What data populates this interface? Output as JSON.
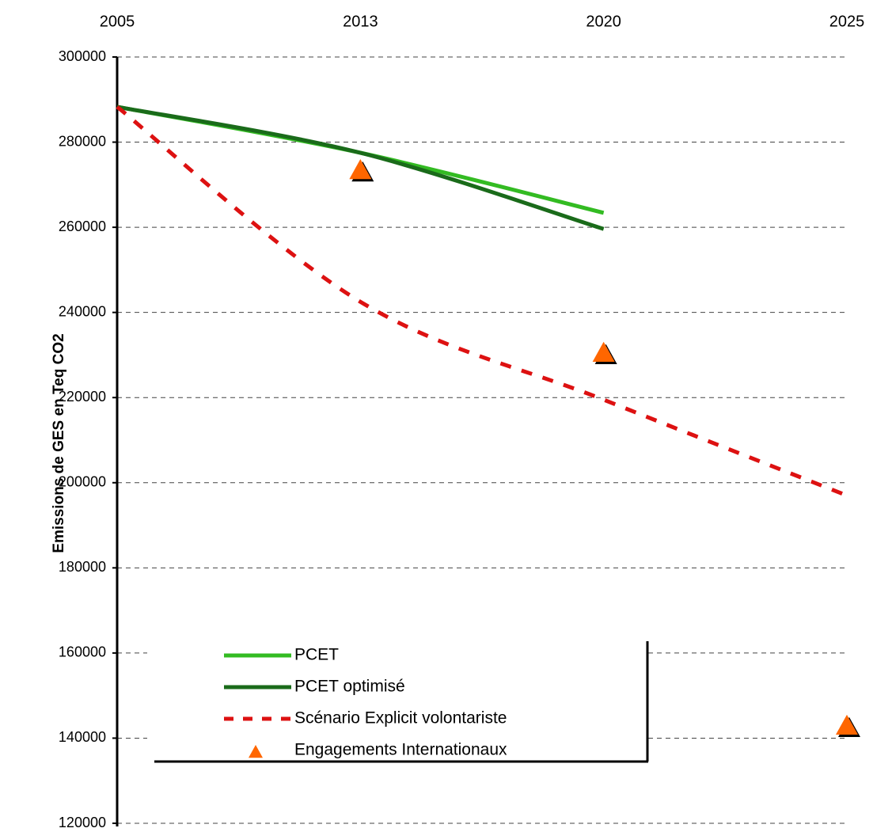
{
  "chart_data": {
    "type": "line",
    "y_label": "Emissions de GES en Teq CO2",
    "categories": [
      "2005",
      "2013",
      "2020",
      "2025"
    ],
    "ylim": [
      120000,
      300000
    ],
    "yticks": [
      120000,
      140000,
      160000,
      180000,
      200000,
      220000,
      240000,
      260000,
      280000,
      300000
    ],
    "grid": true,
    "legend": "bottom-left",
    "series": [
      {
        "name": "PCET",
        "color": "#33bb22",
        "style": "solid",
        "values": [
          288300,
          277500,
          263400,
          null
        ]
      },
      {
        "name": "PCET optimisé",
        "color": "#1a6b1a",
        "style": "solid",
        "values": [
          288300,
          277500,
          259600,
          null
        ]
      },
      {
        "name": "Scénario Explicit volontariste",
        "color": "#dd1111",
        "style": "dashed",
        "values": [
          288300,
          242500,
          219500,
          197000
        ]
      },
      {
        "name": "Engagements Internationaux",
        "color": "#ff6600",
        "style": "triangle",
        "values": [
          null,
          273400,
          230500,
          142900
        ]
      }
    ]
  }
}
